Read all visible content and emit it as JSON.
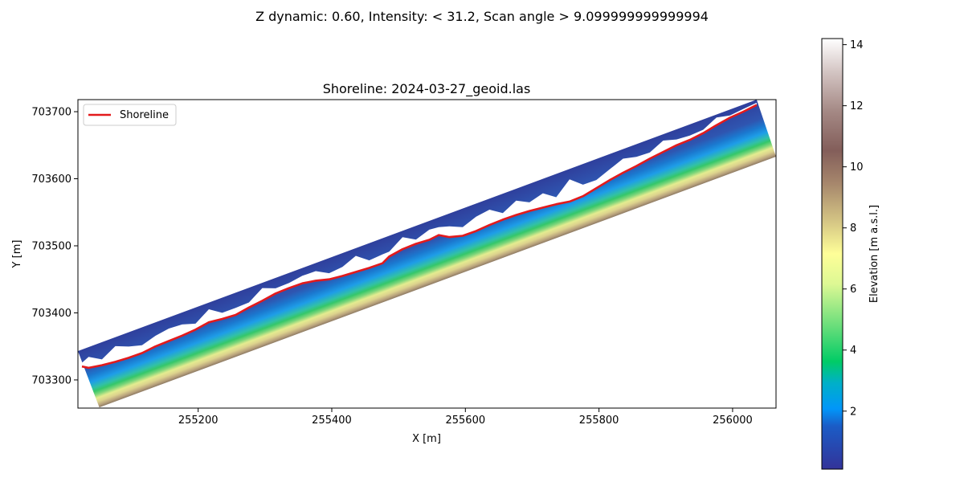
{
  "figure": {
    "suptitle": "Z dynamic: 0.60, Intensity: < 31.2, Scan angle > 9.099999999999994"
  },
  "chart_data": {
    "type": "scatter",
    "title": "Shoreline: 2024-03-27_geoid.las",
    "xlabel": "X [m]",
    "ylabel": "Y [m]",
    "xlim": [
      255020,
      256065
    ],
    "ylim": [
      703258,
      703718
    ],
    "xticks": [
      255200,
      255400,
      255600,
      255800,
      256000
    ],
    "yticks": [
      703300,
      703400,
      703500,
      703600,
      703700
    ],
    "grid": false,
    "legend": {
      "position": "upper-left",
      "entries": [
        "Shoreline"
      ]
    },
    "series": [
      {
        "name": "Shoreline",
        "type": "line",
        "color": "#e31a1c",
        "x": [
          255026,
          255036,
          255056,
          255076,
          255096,
          255116,
          255136,
          255156,
          255176,
          255196,
          255216,
          255236,
          255256,
          255276,
          255296,
          255316,
          255336,
          255356,
          255376,
          255396,
          255416,
          255436,
          255456,
          255476,
          255486,
          255506,
          255526,
          255546,
          255560,
          255576,
          255596,
          255616,
          255636,
          255656,
          255676,
          255696,
          255716,
          255736,
          255756,
          255776,
          255796,
          255816,
          255836,
          255856,
          255876,
          255896,
          255916,
          255936,
          255956,
          255976,
          255996,
          256016,
          256036
        ],
        "y": [
          703320,
          703318,
          703322,
          703327,
          703333,
          703340,
          703350,
          703358,
          703366,
          703375,
          703386,
          703391,
          703397,
          703408,
          703418,
          703429,
          703437,
          703444,
          703448,
          703450,
          703455,
          703461,
          703467,
          703474,
          703484,
          703495,
          703503,
          703509,
          703516,
          703513,
          703515,
          703522,
          703531,
          703539,
          703546,
          703552,
          703557,
          703562,
          703566,
          703574,
          703586,
          703598,
          703609,
          703619,
          703630,
          703640,
          703650,
          703658,
          703668,
          703680,
          703691,
          703700,
          703710
        ]
      }
    ],
    "swath": {
      "field": "Elevation",
      "corners": [
        [
          255020,
          703343
        ],
        [
          256036,
          703718
        ],
        [
          256065,
          703633
        ],
        [
          255052,
          703259
        ]
      ],
      "land_limit": "shoreline",
      "colormap": "terrain"
    },
    "colorbar": {
      "label": "Elevation [m a.s.l.]",
      "min": 0.1,
      "max": 14.2,
      "ticks": [
        2,
        4,
        6,
        8,
        10,
        12,
        14
      ]
    }
  }
}
